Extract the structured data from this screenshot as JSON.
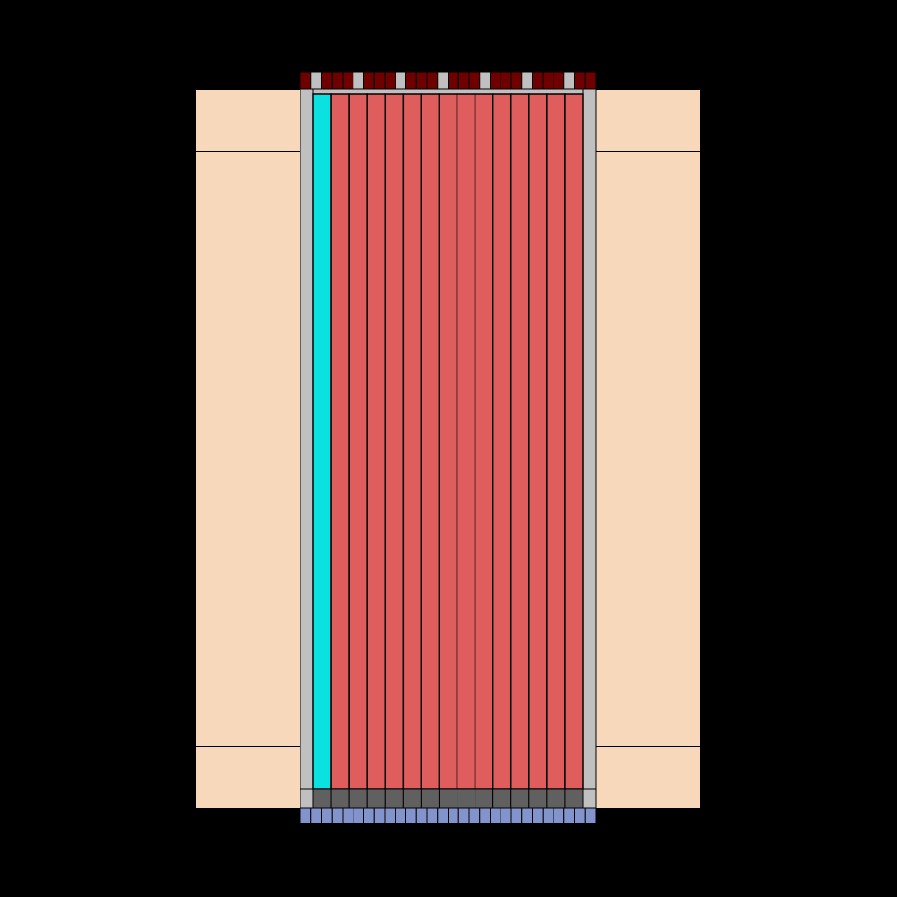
{
  "diagram": {
    "colors": {
      "background": "#000000",
      "outer_region": "#f8d8bb",
      "cladding": "#c0c0c0",
      "coolant_channel": "#0be1e1",
      "fuel_pin": "#df5d5d",
      "upper_plenum": "#6e0000",
      "upper_spacer": "#c0c0c0",
      "lower_plug": "#606060",
      "lower_inlet": "#8393cc",
      "line": "#000000"
    },
    "fuel_pin_count": 14,
    "coolant_channel_count": 1,
    "plenum_block_count": 28,
    "inlet_block_count": 28,
    "plug_block_count": 15
  }
}
